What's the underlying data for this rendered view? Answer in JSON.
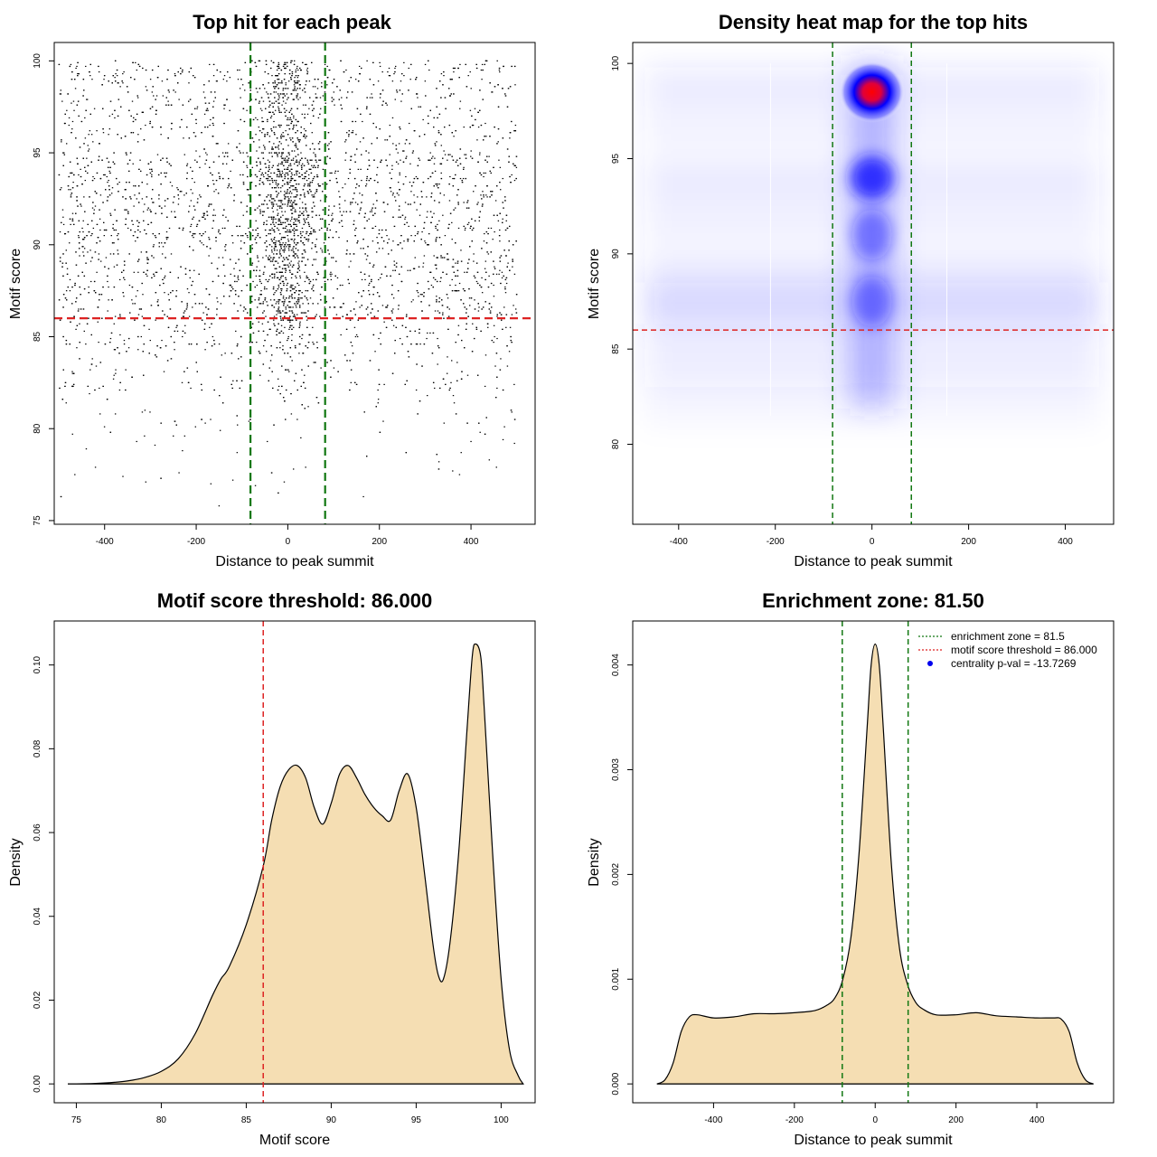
{
  "chart_data": [
    {
      "type": "scatter",
      "title": "Top hit for each peak",
      "xlabel": "Distance to peak summit",
      "ylabel": "Motif score",
      "xlim": [
        -510,
        540
      ],
      "ylim": [
        74.8,
        101
      ],
      "xticks": [
        -400,
        -200,
        0,
        200,
        400
      ],
      "yticks": [
        75,
        80,
        85,
        90,
        95,
        100
      ],
      "xtick_labels": [
        "-400",
        "-200",
        "0",
        "200",
        "400"
      ],
      "ytick_labels": [
        "75",
        "80",
        "85",
        "90",
        "95",
        "100"
      ],
      "hlines": [
        {
          "y": 86.0,
          "color": "#dd2222",
          "style": "dashed"
        }
      ],
      "vlines": [
        {
          "x": -81.5,
          "color": "#117711",
          "style": "dashed"
        },
        {
          "x": 81.5,
          "color": "#117711",
          "style": "dashed"
        }
      ],
      "points_description_x_range": [
        -500,
        500
      ],
      "points_y_range": [
        75.8,
        100
      ],
      "point_color": "#000000",
      "outlier_points": [
        {
          "x": -465,
          "y": 77.5
        },
        {
          "x": -440,
          "y": 78.9
        },
        {
          "x": -420,
          "y": 77.9
        },
        {
          "x": -360,
          "y": 77.4
        },
        {
          "x": -330,
          "y": 79.3
        },
        {
          "x": -310,
          "y": 77.1
        },
        {
          "x": -290,
          "y": 79.1
        },
        {
          "x": -230,
          "y": 78.8
        },
        {
          "x": -150,
          "y": 75.8
        },
        {
          "x": -120,
          "y": 77.2
        },
        {
          "x": 330,
          "y": 78.2
        },
        {
          "x": 360,
          "y": 77.7
        },
        {
          "x": 375,
          "y": 77.5
        },
        {
          "x": 400,
          "y": 79.3
        },
        {
          "x": 420,
          "y": 79.8
        },
        {
          "x": 440,
          "y": 78.3
        },
        {
          "x": 470,
          "y": 79.4
        },
        {
          "x": 495,
          "y": 79.2
        },
        {
          "x": -470,
          "y": 79.7
        },
        {
          "x": -250,
          "y": 79.6
        }
      ]
    },
    {
      "type": "heatmap",
      "title": "Density heat map for the top hits",
      "xlabel": "Distance to peak summit",
      "ylabel": "Motif score",
      "xlim": [
        -495,
        500
      ],
      "ylim": [
        75.8,
        101.1
      ],
      "xticks": [
        -400,
        -200,
        0,
        200,
        400
      ],
      "yticks": [
        80,
        85,
        90,
        95,
        100
      ],
      "xtick_labels": [
        "-400",
        "-200",
        "0",
        "200",
        "400"
      ],
      "ytick_labels": [
        "80",
        "85",
        "90",
        "95",
        "100"
      ],
      "hlines": [
        {
          "y": 86.0,
          "color": "#dd2222",
          "style": "dashed"
        }
      ],
      "vlines": [
        {
          "x": -81.5,
          "color": "#117711",
          "style": "dashed"
        },
        {
          "x": 81.5,
          "color": "#117711",
          "style": "dashed"
        }
      ],
      "hotspots": [
        {
          "x": 0,
          "y": 98.5,
          "level": "max"
        },
        {
          "x": 0,
          "y": 94.0,
          "level": "high"
        },
        {
          "x": 0,
          "y": 91.0,
          "level": "medium"
        },
        {
          "x": 0,
          "y": 87.5,
          "level": "medium"
        }
      ],
      "color_scale": [
        "#ffffff",
        "#0000ff",
        "#ff0000"
      ]
    },
    {
      "type": "area",
      "title": "Motif score threshold: 86.000",
      "xlabel": "Motif score",
      "ylabel": "Density",
      "xlim": [
        73.7,
        102.0
      ],
      "ylim": [
        -0.0045,
        0.1105
      ],
      "xticks": [
        75,
        80,
        85,
        90,
        95,
        100
      ],
      "yticks": [
        0.0,
        0.02,
        0.04,
        0.06,
        0.08,
        0.1
      ],
      "xtick_labels": [
        "75",
        "80",
        "85",
        "90",
        "95",
        "100"
      ],
      "ytick_labels": [
        "0.00",
        "0.02",
        "0.04",
        "0.06",
        "0.08",
        "0.10"
      ],
      "vlines": [
        {
          "x": 86.0,
          "color": "#dd2222",
          "style": "dashed"
        }
      ],
      "fill_color": "#f5deb3",
      "x": [
        74.5,
        76,
        77,
        78,
        79,
        80,
        81,
        82,
        83,
        83.5,
        84,
        85,
        86,
        86.5,
        87,
        87.5,
        88,
        88.5,
        89,
        89.5,
        90,
        90.5,
        91,
        91.5,
        92,
        92.5,
        93,
        93.5,
        94,
        94.5,
        95,
        95.5,
        96,
        96.3,
        96.6,
        97,
        97.5,
        98,
        98.3,
        98.5,
        98.8,
        99,
        99.5,
        100,
        100.5,
        101,
        101.3
      ],
      "y": [
        0.0,
        0.0001,
        0.0003,
        0.0007,
        0.0015,
        0.003,
        0.006,
        0.012,
        0.021,
        0.025,
        0.028,
        0.038,
        0.052,
        0.063,
        0.071,
        0.075,
        0.076,
        0.073,
        0.066,
        0.062,
        0.067,
        0.074,
        0.076,
        0.073,
        0.069,
        0.066,
        0.064,
        0.063,
        0.07,
        0.074,
        0.066,
        0.05,
        0.033,
        0.026,
        0.025,
        0.034,
        0.055,
        0.085,
        0.102,
        0.105,
        0.102,
        0.09,
        0.055,
        0.025,
        0.008,
        0.002,
        0.0
      ]
    },
    {
      "type": "area",
      "title": "Enrichment zone: 81.50",
      "xlabel": "Distance to peak summit",
      "ylabel": "Density",
      "xlim": [
        -600,
        590
      ],
      "ylim": [
        -0.00018,
        0.00442
      ],
      "xticks": [
        -400,
        -200,
        0,
        200,
        400
      ],
      "yticks": [
        0.0,
        0.001,
        0.002,
        0.003,
        0.004
      ],
      "xtick_labels": [
        "-400",
        "-200",
        "0",
        "200",
        "400"
      ],
      "ytick_labels": [
        "0.000",
        "0.001",
        "0.002",
        "0.003",
        "0.004"
      ],
      "vlines": [
        {
          "x": -81.5,
          "color": "#117711",
          "style": "dashed"
        },
        {
          "x": 81.5,
          "color": "#117711",
          "style": "dashed"
        }
      ],
      "fill_color": "#f5deb3",
      "x": [
        -540,
        -520,
        -500,
        -480,
        -460,
        -440,
        -400,
        -350,
        -300,
        -250,
        -200,
        -150,
        -120,
        -100,
        -80,
        -60,
        -40,
        -20,
        -10,
        0,
        10,
        20,
        40,
        60,
        80,
        100,
        120,
        150,
        200,
        250,
        300,
        350,
        400,
        440,
        460,
        480,
        500,
        520,
        540
      ],
      "y": [
        0.0,
        4e-05,
        0.0002,
        0.0005,
        0.00064,
        0.00066,
        0.00063,
        0.00064,
        0.00067,
        0.00067,
        0.00068,
        0.0007,
        0.00075,
        0.00082,
        0.001,
        0.0014,
        0.0022,
        0.0034,
        0.004,
        0.0042,
        0.004,
        0.0034,
        0.0021,
        0.0013,
        0.00095,
        0.00078,
        0.00071,
        0.00066,
        0.00066,
        0.00068,
        0.00065,
        0.00064,
        0.00063,
        0.00063,
        0.00062,
        0.0005,
        0.0002,
        4e-05,
        0.0
      ]
    }
  ],
  "legend": {
    "items": [
      {
        "label": "enrichment zone = 81.5",
        "color": "#117711",
        "kind": "dotted-line"
      },
      {
        "label": "motif score threshold = 86.000",
        "color": "#dd2222",
        "kind": "dotted-line"
      },
      {
        "label": "centrality p-val = -13.7269",
        "color": "#0000ee",
        "kind": "point"
      }
    ]
  }
}
